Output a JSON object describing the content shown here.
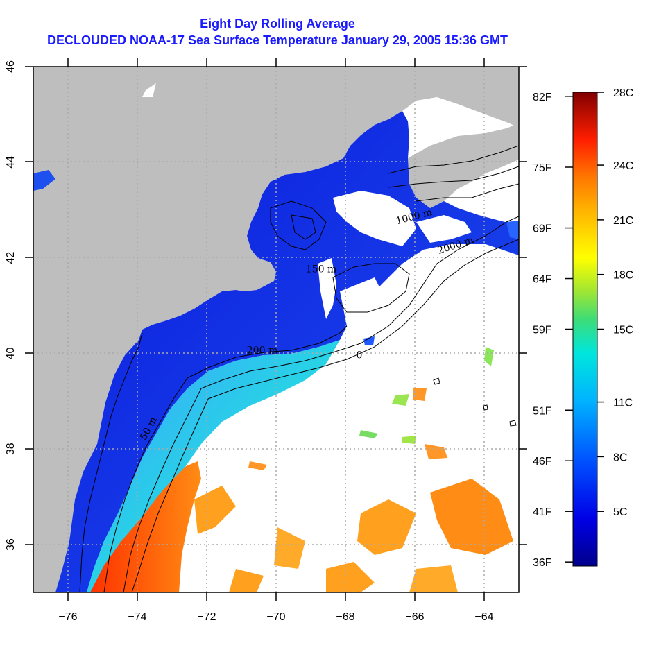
{
  "title": "Eight Day Rolling Average",
  "subtitle": "DECLOUDED NOAA-17 Sea Surface Temperature January 29, 2005 15:36 GMT",
  "colors": {
    "land": "#bebebe",
    "cloud": "#ffffff",
    "grid": "#aaaaaa",
    "title": "#1a1aff"
  },
  "map": {
    "lon_range": [
      -77,
      -63
    ],
    "lat_range": [
      35,
      46
    ],
    "x_ticks": [
      -76,
      -74,
      -72,
      -70,
      -68,
      -66,
      -64
    ],
    "y_ticks": [
      36,
      38,
      40,
      42,
      44,
      46
    ],
    "x_tick_labels": [
      "−76",
      "−74",
      "−72",
      "−70",
      "−68",
      "−66",
      "−64"
    ],
    "y_tick_labels": [
      "36",
      "38",
      "40",
      "42",
      "44",
      "46"
    ],
    "grid": "dotted",
    "contour_labels": [
      {
        "text": "50 m",
        "lon": -73.6,
        "lat": 38.4
      },
      {
        "text": "200 m",
        "lon": -70.4,
        "lat": 40.0
      },
      {
        "text": "1000 m",
        "lon": -66.0,
        "lat": 42.8
      },
      {
        "text": "2000 m",
        "lon": -64.8,
        "lat": 42.2
      },
      {
        "text": "150 m",
        "lon": -68.7,
        "lat": 41.7
      },
      {
        "text": "0",
        "lon": -67.6,
        "lat": 39.9
      }
    ]
  },
  "colorbar": {
    "celsius": [
      "28C",
      "24C",
      "21C",
      "18C",
      "15C",
      "11C",
      "8C",
      "5C"
    ],
    "celsius_values": [
      28,
      24,
      21,
      18,
      15,
      11,
      8,
      5
    ],
    "fahrenheit": [
      "82F",
      "75F",
      "69F",
      "64F",
      "59F",
      "51F",
      "46F",
      "41F",
      "36F"
    ],
    "fahrenheit_values": [
      82,
      75,
      69,
      64,
      59,
      51,
      46,
      41,
      36
    ],
    "range_c": [
      2,
      28
    ]
  }
}
